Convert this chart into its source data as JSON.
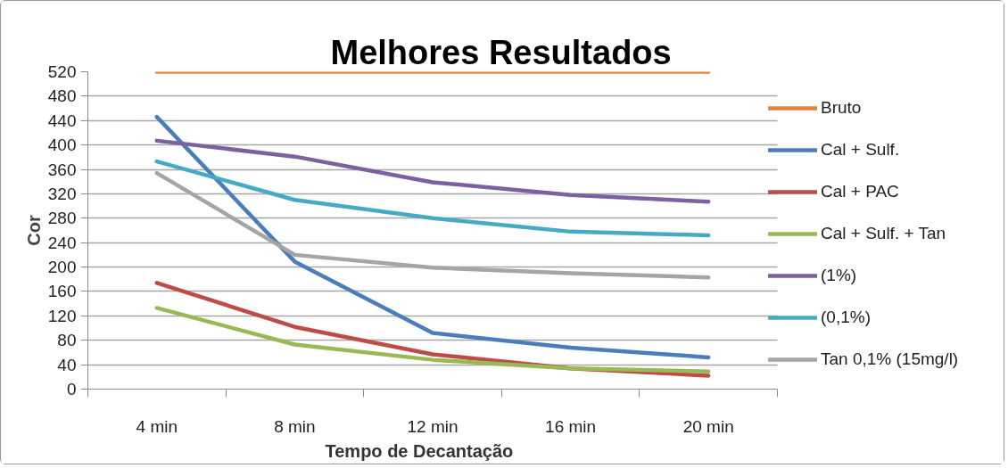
{
  "chart_data": {
    "type": "line",
    "title": "Melhores Resultados",
    "xlabel": "Tempo de Decantação",
    "ylabel": "Cor",
    "categories": [
      "4 min",
      "8 min",
      "12 min",
      "16 min",
      "20 min"
    ],
    "ylim": [
      0,
      520
    ],
    "yticks": [
      0,
      40,
      80,
      120,
      160,
      200,
      240,
      280,
      320,
      360,
      400,
      440,
      480,
      520
    ],
    "grid": "y",
    "legend": "right",
    "line_style": "solid",
    "series": [
      {
        "name": "Bruto",
        "color": "#e3833a",
        "values": [
          520,
          520,
          520,
          520,
          520
        ]
      },
      {
        "name": "Cal + Sulf.",
        "color": "#4a7ebb",
        "values": [
          446,
          209,
          92,
          68,
          52
        ]
      },
      {
        "name": "Cal + PAC",
        "color": "#be4b48",
        "values": [
          174,
          102,
          57,
          34,
          22
        ]
      },
      {
        "name": "Cal + Sulf. + Tan",
        "color": "#98b954",
        "values": [
          133,
          73,
          48,
          34,
          29
        ]
      },
      {
        "name": "(1%)",
        "color": "#7d60a0",
        "values": [
          407,
          381,
          339,
          318,
          307
        ]
      },
      {
        "name": "(0,1%)",
        "color": "#46aac5",
        "values": [
          373,
          310,
          280,
          258,
          252
        ]
      },
      {
        "name": "Tan 0,1% (15mg/l)",
        "color": "#a5a5a5",
        "values": [
          354,
          220,
          199,
          190,
          183
        ]
      }
    ]
  }
}
